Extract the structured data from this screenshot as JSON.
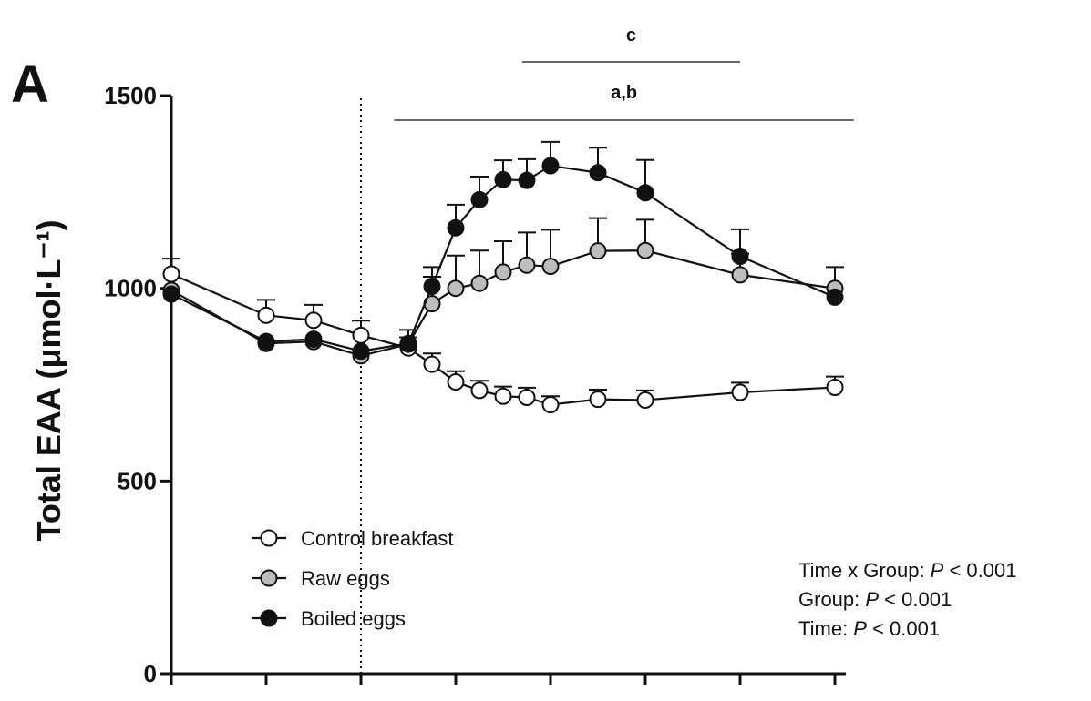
{
  "chart_data": {
    "type": "line",
    "panel_label": "A",
    "ylabel": "Total EAA (μmol·L⁻¹)",
    "ylim": [
      0,
      1500
    ],
    "yticks": [
      0,
      500,
      1000,
      1500
    ],
    "x": [
      0,
      1,
      1.5,
      2,
      2.5,
      2.75,
      3,
      3.25,
      3.5,
      3.75,
      4,
      4.5,
      5,
      6,
      7
    ],
    "xlim": [
      0,
      7
    ],
    "xticks": [
      0,
      1,
      2,
      3,
      4,
      5,
      6,
      7
    ],
    "vline_x": 2,
    "grid": false,
    "legend_position": "bottom-left",
    "series": [
      {
        "name": "Control breakfast",
        "fill": "#ffffff",
        "values": [
          1037,
          930,
          917,
          878,
          845,
          803,
          757,
          735,
          720,
          717,
          698,
          712,
          710,
          730,
          743
        ],
        "errors": [
          40,
          40,
          40,
          38,
          28,
          28,
          28,
          25,
          25,
          25,
          22,
          25,
          25,
          25,
          28
        ]
      },
      {
        "name": "Raw eggs",
        "fill": "#bdbdbd",
        "values": [
          995,
          857,
          862,
          825,
          855,
          960,
          1000,
          1013,
          1042,
          1060,
          1057,
          1097,
          1098,
          1035,
          1000
        ],
        "errors": [
          0,
          0,
          0,
          0,
          0,
          70,
          85,
          85,
          80,
          85,
          95,
          85,
          80,
          55,
          55
        ]
      },
      {
        "name": "Boiled eggs",
        "fill": "#111111",
        "values": [
          985,
          862,
          868,
          837,
          857,
          1005,
          1157,
          1230,
          1282,
          1280,
          1318,
          1300,
          1248,
          1083,
          977
        ],
        "errors": [
          0,
          0,
          0,
          0,
          35,
          50,
          60,
          60,
          50,
          55,
          62,
          65,
          85,
          70,
          0
        ]
      }
    ],
    "significance": [
      {
        "label": "c",
        "x_start": 3.7,
        "x_end": 6.0
      },
      {
        "label": "a,b",
        "x_start": 2.35,
        "x_end": 7.2
      }
    ],
    "stats": [
      {
        "prefix": "Time x Group: ",
        "p": "P",
        "suffix": " < 0.001"
      },
      {
        "prefix": "Group: ",
        "p": "P",
        "suffix": " < 0.001"
      },
      {
        "prefix": "Time: ",
        "p": "P",
        "suffix": " < 0.001"
      }
    ]
  }
}
